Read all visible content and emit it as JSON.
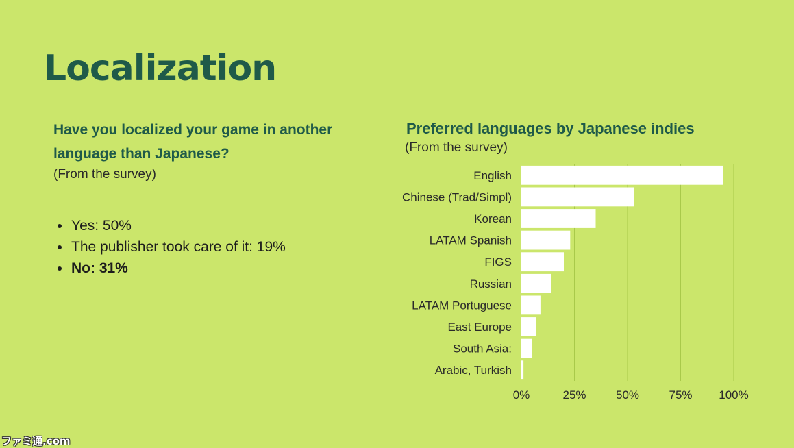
{
  "slide": {
    "title": "Localization",
    "question": "Have you localized your game in another language than Japanese?",
    "question_note": "(From the survey)",
    "answers": [
      {
        "text": "Yes: 50%",
        "bold": false
      },
      {
        "text": "The publisher took care of it: 19%",
        "bold": false
      },
      {
        "text": "No: 31%",
        "bold": true
      }
    ]
  },
  "watermark": "ファミ通.com",
  "chart_data": {
    "type": "bar",
    "orientation": "horizontal",
    "title": "Preferred languages by Japanese indies",
    "subtitle": "(From the survey)",
    "categories": [
      "English",
      "Chinese (Trad/Simpl)",
      "Korean",
      "LATAM Spanish",
      "FIGS",
      "Russian",
      "LATAM Portuguese",
      "East Europe",
      "South Asia:",
      "Arabic, Turkish"
    ],
    "values": [
      95,
      53,
      35,
      23,
      20,
      14,
      9,
      7,
      5,
      1
    ],
    "xlim": [
      0,
      100
    ],
    "xticks": [
      "0%",
      "25%",
      "50%",
      "75%",
      "100%"
    ],
    "xtick_values": [
      0,
      25,
      50,
      75,
      100
    ],
    "grid": true,
    "bar_color": "#ffffff",
    "grid_color": "#a9c94a"
  }
}
